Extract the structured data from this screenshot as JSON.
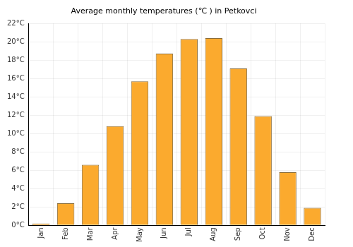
{
  "chart_data": {
    "type": "bar",
    "title": "Average monthly temperatures (℃ ) in Petkovci",
    "categories": [
      "Jan",
      "Feb",
      "Mar",
      "Apr",
      "May",
      "Jun",
      "Jul",
      "Aug",
      "Sep",
      "Oct",
      "Nov",
      "Dec"
    ],
    "values": [
      0.2,
      2.4,
      6.6,
      10.8,
      15.7,
      18.7,
      20.3,
      20.4,
      17.1,
      11.9,
      5.8,
      1.9
    ],
    "color": "#fbaa2e",
    "ylim": [
      0,
      22
    ],
    "yticks": [
      {
        "value": 0,
        "label": "0°C"
      },
      {
        "value": 2,
        "label": "2°C"
      },
      {
        "value": 4,
        "label": "4°C"
      },
      {
        "value": 6,
        "label": "6°C"
      },
      {
        "value": 8,
        "label": "8°C"
      },
      {
        "value": 10,
        "label": "10°C"
      },
      {
        "value": 12,
        "label": "12°C"
      },
      {
        "value": 14,
        "label": "14°C"
      },
      {
        "value": 16,
        "label": "16°C"
      },
      {
        "value": 18,
        "label": "18°C"
      },
      {
        "value": 20,
        "label": "20°C"
      },
      {
        "value": 22,
        "label": "22°C"
      }
    ],
    "grid": true
  }
}
